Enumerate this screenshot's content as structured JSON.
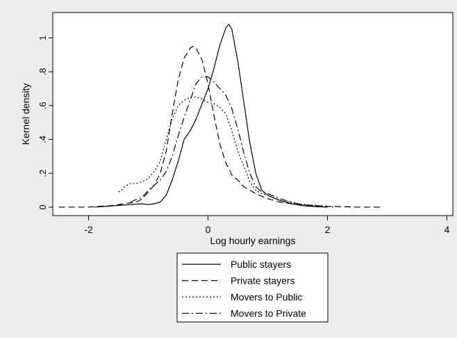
{
  "chart_data": {
    "type": "line",
    "title": "",
    "xlabel": "Log hourly earnings",
    "ylabel": "Kernel density",
    "xlim": [
      -2.6,
      4.1
    ],
    "ylim": [
      -0.05,
      1.15
    ],
    "xticks": [
      -2,
      0,
      2,
      4
    ],
    "xtick_labels": [
      "-2",
      "0",
      "2",
      "4"
    ],
    "yticks": [
      0,
      0.2,
      0.4,
      0.6,
      0.8,
      1
    ],
    "ytick_labels": [
      "0",
      ".2",
      ".4",
      ".6",
      ".8",
      "1"
    ],
    "grid": false,
    "legend_position": "bottom",
    "series": [
      {
        "name": "Public stayers",
        "style": "solid",
        "x": [
          -1.9,
          -1.7,
          -1.5,
          -1.3,
          -1.1,
          -1.0,
          -0.9,
          -0.8,
          -0.7,
          -0.6,
          -0.5,
          -0.4,
          -0.3,
          -0.2,
          -0.1,
          0.0,
          0.1,
          0.2,
          0.3,
          0.35,
          0.4,
          0.5,
          0.6,
          0.7,
          0.8,
          0.9,
          1.0,
          1.2,
          1.4,
          1.6,
          1.8,
          2.0
        ],
        "y": [
          0.0,
          0.005,
          0.01,
          0.015,
          0.02,
          0.015,
          0.02,
          0.03,
          0.07,
          0.16,
          0.27,
          0.4,
          0.45,
          0.52,
          0.61,
          0.7,
          0.82,
          0.96,
          1.06,
          1.08,
          1.05,
          0.86,
          0.62,
          0.38,
          0.2,
          0.1,
          0.07,
          0.04,
          0.02,
          0.008,
          0.003,
          0.0
        ]
      },
      {
        "name": "Private stayers",
        "style": "dashed",
        "x": [
          -2.5,
          -2.0,
          -1.6,
          -1.4,
          -1.2,
          -1.1,
          -1.0,
          -0.9,
          -0.8,
          -0.7,
          -0.6,
          -0.5,
          -0.4,
          -0.3,
          -0.25,
          -0.2,
          -0.1,
          0.0,
          0.1,
          0.2,
          0.3,
          0.4,
          0.5,
          0.6,
          0.8,
          1.0,
          1.2,
          1.5,
          2.0,
          2.5,
          2.9
        ],
        "y": [
          0.0,
          0.0,
          0.01,
          0.02,
          0.03,
          0.05,
          0.09,
          0.13,
          0.2,
          0.33,
          0.55,
          0.75,
          0.88,
          0.94,
          0.95,
          0.94,
          0.87,
          0.73,
          0.54,
          0.37,
          0.26,
          0.19,
          0.16,
          0.12,
          0.08,
          0.05,
          0.03,
          0.015,
          0.005,
          0.0,
          0.0
        ]
      },
      {
        "name": "Movers to Public",
        "style": "dotted",
        "x": [
          -1.5,
          -1.45,
          -1.4,
          -1.35,
          -1.3,
          -1.2,
          -1.1,
          -1.0,
          -0.9,
          -0.8,
          -0.7,
          -0.6,
          -0.5,
          -0.4,
          -0.3,
          -0.2,
          -0.1,
          0.0,
          0.1,
          0.2,
          0.3,
          0.4,
          0.5,
          0.6,
          0.7,
          0.8,
          0.9,
          1.0,
          1.2,
          1.5,
          1.8,
          2.0,
          2.1
        ],
        "y": [
          0.09,
          0.1,
          0.12,
          0.13,
          0.14,
          0.14,
          0.15,
          0.17,
          0.21,
          0.27,
          0.4,
          0.52,
          0.6,
          0.63,
          0.65,
          0.65,
          0.64,
          0.62,
          0.61,
          0.59,
          0.55,
          0.45,
          0.33,
          0.24,
          0.15,
          0.1,
          0.08,
          0.07,
          0.04,
          0.02,
          0.01,
          0.005,
          0.0
        ]
      },
      {
        "name": "Movers to Private",
        "style": "dash-dot",
        "x": [
          -1.3,
          -1.1,
          -1.0,
          -0.9,
          -0.8,
          -0.7,
          -0.6,
          -0.5,
          -0.4,
          -0.3,
          -0.2,
          -0.1,
          0.0,
          0.1,
          0.2,
          0.3,
          0.4,
          0.5,
          0.6,
          0.7,
          0.8,
          0.9,
          1.0,
          1.2,
          1.5,
          1.8,
          2.0
        ],
        "y": [
          0.03,
          0.06,
          0.1,
          0.13,
          0.16,
          0.21,
          0.3,
          0.42,
          0.53,
          0.63,
          0.73,
          0.77,
          0.77,
          0.74,
          0.7,
          0.66,
          0.58,
          0.46,
          0.32,
          0.2,
          0.12,
          0.09,
          0.08,
          0.05,
          0.02,
          0.005,
          0.0
        ]
      }
    ]
  }
}
